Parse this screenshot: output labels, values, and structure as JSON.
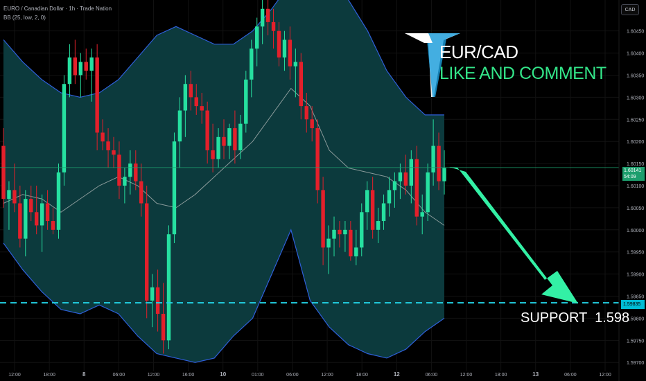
{
  "header": {
    "symbol_line": "EURO / Canadian Dollar · 1h · Trade Nation",
    "indicator_line": "BB (25, low, 2, 0)",
    "currency_badge": "CAD"
  },
  "overlay": {
    "title": "EUR/CAD",
    "subtitle": "LIKE AND COMMENT",
    "support_label": "SUPPORT  1.598"
  },
  "price_tags": {
    "current_price": "1.60141",
    "countdown": "54:09",
    "support_price": "1.59835"
  },
  "colors": {
    "up": "#26e0a0",
    "down": "#e3202b",
    "band_fill": "#0d3d40",
    "band_line": "#2e5fd9",
    "basis_line": "#8a9a9a",
    "support_line": "#22d3e5",
    "arrow": "#33f0a5"
  },
  "chart_data": {
    "type": "candlestick",
    "y_axis_labels": [
      "1.60450",
      "1.60400",
      "1.60350",
      "1.60300",
      "1.60250",
      "1.60200",
      "1.60150",
      "1.60100",
      "1.60050",
      "1.60000",
      "1.59950",
      "1.59900",
      "1.59850",
      "1.59800",
      "1.59750",
      "1.59700"
    ],
    "x_axis_labels": [
      "12:00",
      "18:00",
      "8",
      "06:00",
      "12:00",
      "16:00",
      "10",
      "01:00",
      "06:00",
      "12:00",
      "18:00",
      "12",
      "06:00",
      "12:00",
      "18:00",
      "13",
      "06:00",
      "12:00"
    ],
    "ylim": [
      1.5968,
      1.6052
    ],
    "support_level": 1.59835,
    "current_price": 1.60141,
    "candles": [
      [
        1.6019,
        1.6023,
        1.6005,
        1.6007
      ],
      [
        1.6007,
        1.6011,
        1.6,
        1.6009
      ],
      [
        1.6009,
        1.6015,
        1.6004,
        1.6006
      ],
      [
        1.6006,
        1.601,
        1.5996,
        1.5998
      ],
      [
        1.5998,
        1.6009,
        1.5994,
        1.6007
      ],
      [
        1.6007,
        1.601,
        1.6002,
        1.6004
      ],
      [
        1.6004,
        1.601,
        1.5999,
        1.6001
      ],
      [
        1.6001,
        1.6008,
        1.5995,
        1.6006
      ],
      [
        1.6006,
        1.6009,
        1.6,
        1.6002
      ],
      [
        1.6002,
        1.6005,
        1.5999,
        1.6
      ],
      [
        1.6,
        1.6015,
        1.5998,
        1.6013
      ],
      [
        1.6013,
        1.6035,
        1.601,
        1.6033
      ],
      [
        1.6033,
        1.6042,
        1.603,
        1.6039
      ],
      [
        1.6039,
        1.6043,
        1.6033,
        1.6035
      ],
      [
        1.6035,
        1.604,
        1.603,
        1.6038
      ],
      [
        1.6038,
        1.6041,
        1.6034,
        1.6036
      ],
      [
        1.6036,
        1.6041,
        1.6029,
        1.6039
      ],
      [
        1.6039,
        1.6042,
        1.6018,
        1.6022
      ],
      [
        1.6022,
        1.6025,
        1.6018,
        1.602
      ],
      [
        1.602,
        1.6023,
        1.6014,
        1.6018
      ],
      [
        1.6018,
        1.6021,
        1.6014,
        1.6017
      ],
      [
        1.6017,
        1.602,
        1.6007,
        1.601
      ],
      [
        1.601,
        1.6014,
        1.6006,
        1.6012
      ],
      [
        1.6012,
        1.6018,
        1.6008,
        1.6015
      ],
      [
        1.6015,
        1.6018,
        1.6009,
        1.6011
      ],
      [
        1.6011,
        1.6015,
        1.6003,
        1.6006
      ],
      [
        1.6006,
        1.601,
        1.598,
        1.5984
      ],
      [
        1.5984,
        1.599,
        1.5978,
        1.5987
      ],
      [
        1.5987,
        1.5991,
        1.5977,
        1.5981
      ],
      [
        1.5981,
        1.5988,
        1.5972,
        1.5975
      ],
      [
        1.5975,
        1.6001,
        1.5973,
        1.5999
      ],
      [
        1.5999,
        1.6022,
        1.5997,
        1.602
      ],
      [
        1.602,
        1.603,
        1.6014,
        1.6027
      ],
      [
        1.6027,
        1.6035,
        1.6021,
        1.6033
      ],
      [
        1.6033,
        1.6036,
        1.6027,
        1.603
      ],
      [
        1.603,
        1.6033,
        1.6026,
        1.6028
      ],
      [
        1.6028,
        1.6031,
        1.6024,
        1.6027
      ],
      [
        1.6027,
        1.6029,
        1.6015,
        1.6018
      ],
      [
        1.6018,
        1.6024,
        1.6013,
        1.6016
      ],
      [
        1.6016,
        1.6023,
        1.6014,
        1.6021
      ],
      [
        1.6021,
        1.6025,
        1.6016,
        1.6019
      ],
      [
        1.6019,
        1.6024,
        1.6016,
        1.6023
      ],
      [
        1.6023,
        1.6027,
        1.6015,
        1.6018
      ],
      [
        1.6018,
        1.6026,
        1.6016,
        1.6024
      ],
      [
        1.6024,
        1.6036,
        1.6022,
        1.6034
      ],
      [
        1.6034,
        1.6043,
        1.603,
        1.6041
      ],
      [
        1.6041,
        1.6048,
        1.6037,
        1.6046
      ],
      [
        1.6046,
        1.6052,
        1.6042,
        1.605
      ],
      [
        1.605,
        1.6053,
        1.6044,
        1.6047
      ],
      [
        1.6047,
        1.605,
        1.6041,
        1.6045
      ],
      [
        1.6045,
        1.6047,
        1.6037,
        1.6039
      ],
      [
        1.6039,
        1.6045,
        1.6036,
        1.6043
      ],
      [
        1.6043,
        1.6046,
        1.6034,
        1.6037
      ],
      [
        1.6037,
        1.6041,
        1.603,
        1.6038
      ],
      [
        1.6038,
        1.604,
        1.6025,
        1.6028
      ],
      [
        1.6028,
        1.6031,
        1.6022,
        1.6025
      ],
      [
        1.6025,
        1.6028,
        1.602,
        1.6023
      ],
      [
        1.6023,
        1.6025,
        1.6006,
        1.6009
      ],
      [
        1.6009,
        1.6012,
        1.5992,
        1.5996
      ],
      [
        1.5996,
        1.6001,
        1.599,
        1.5998
      ],
      [
        1.5998,
        1.6003,
        1.5994,
        1.6
      ],
      [
        1.6,
        1.6002,
        1.5996,
        1.5999
      ],
      [
        1.5999,
        1.6002,
        1.5995,
        1.6
      ],
      [
        1.6,
        1.6002,
        1.5993,
        1.5994
      ],
      [
        1.5994,
        1.6,
        1.5992,
        1.5996
      ],
      [
        1.5996,
        1.6006,
        1.5994,
        1.6004
      ],
      [
        1.6004,
        1.6011,
        1.6,
        1.6009
      ],
      [
        1.6009,
        1.6012,
        1.5998,
        1.6
      ],
      [
        1.6,
        1.6005,
        1.5997,
        1.6002
      ],
      [
        1.6002,
        1.6008,
        1.6,
        1.6006
      ],
      [
        1.6006,
        1.6012,
        1.6003,
        1.6009
      ],
      [
        1.6009,
        1.6013,
        1.6005,
        1.6011
      ],
      [
        1.6011,
        1.6015,
        1.6007,
        1.6013
      ],
      [
        1.6013,
        1.6017,
        1.6008,
        1.601
      ],
      [
        1.601,
        1.6018,
        1.6006,
        1.6016
      ],
      [
        1.6016,
        1.6019,
        1.6001,
        1.6003
      ],
      [
        1.6003,
        1.6008,
        1.5999,
        1.6004
      ],
      [
        1.6004,
        1.6015,
        1.6002,
        1.6013
      ],
      [
        1.6013,
        1.6025,
        1.601,
        1.6019
      ],
      [
        1.6019,
        1.6022,
        1.6009,
        1.6011
      ],
      [
        1.6011,
        1.6018,
        1.6008,
        1.6014
      ]
    ],
    "bands": {
      "upper": [
        1.6043,
        1.6038,
        1.6034,
        1.6031,
        1.603,
        1.6031,
        1.6034,
        1.6039,
        1.6044,
        1.6046,
        1.6044,
        1.6042,
        1.6042,
        1.6045,
        1.605,
        1.6056,
        1.606,
        1.6058,
        1.6052,
        1.6045,
        1.6036,
        1.603,
        1.6026,
        1.6026
      ],
      "lower": [
        1.5997,
        1.5991,
        1.5986,
        1.5982,
        1.5981,
        1.5983,
        1.5981,
        1.5976,
        1.5972,
        1.5971,
        1.597,
        1.5971,
        1.5976,
        1.598,
        1.599,
        1.6,
        1.5984,
        1.5978,
        1.5974,
        1.5972,
        1.5971,
        1.5973,
        1.5977,
        1.598
      ],
      "basis": [
        1.6006,
        1.6008,
        1.6007,
        1.6004,
        1.6007,
        1.601,
        1.6012,
        1.601,
        1.6006,
        1.6005,
        1.6008,
        1.6012,
        1.6016,
        1.602,
        1.6026,
        1.6032,
        1.6028,
        1.6018,
        1.6014,
        1.6013,
        1.6012,
        1.6009,
        1.6004,
        1.6001
      ]
    }
  }
}
